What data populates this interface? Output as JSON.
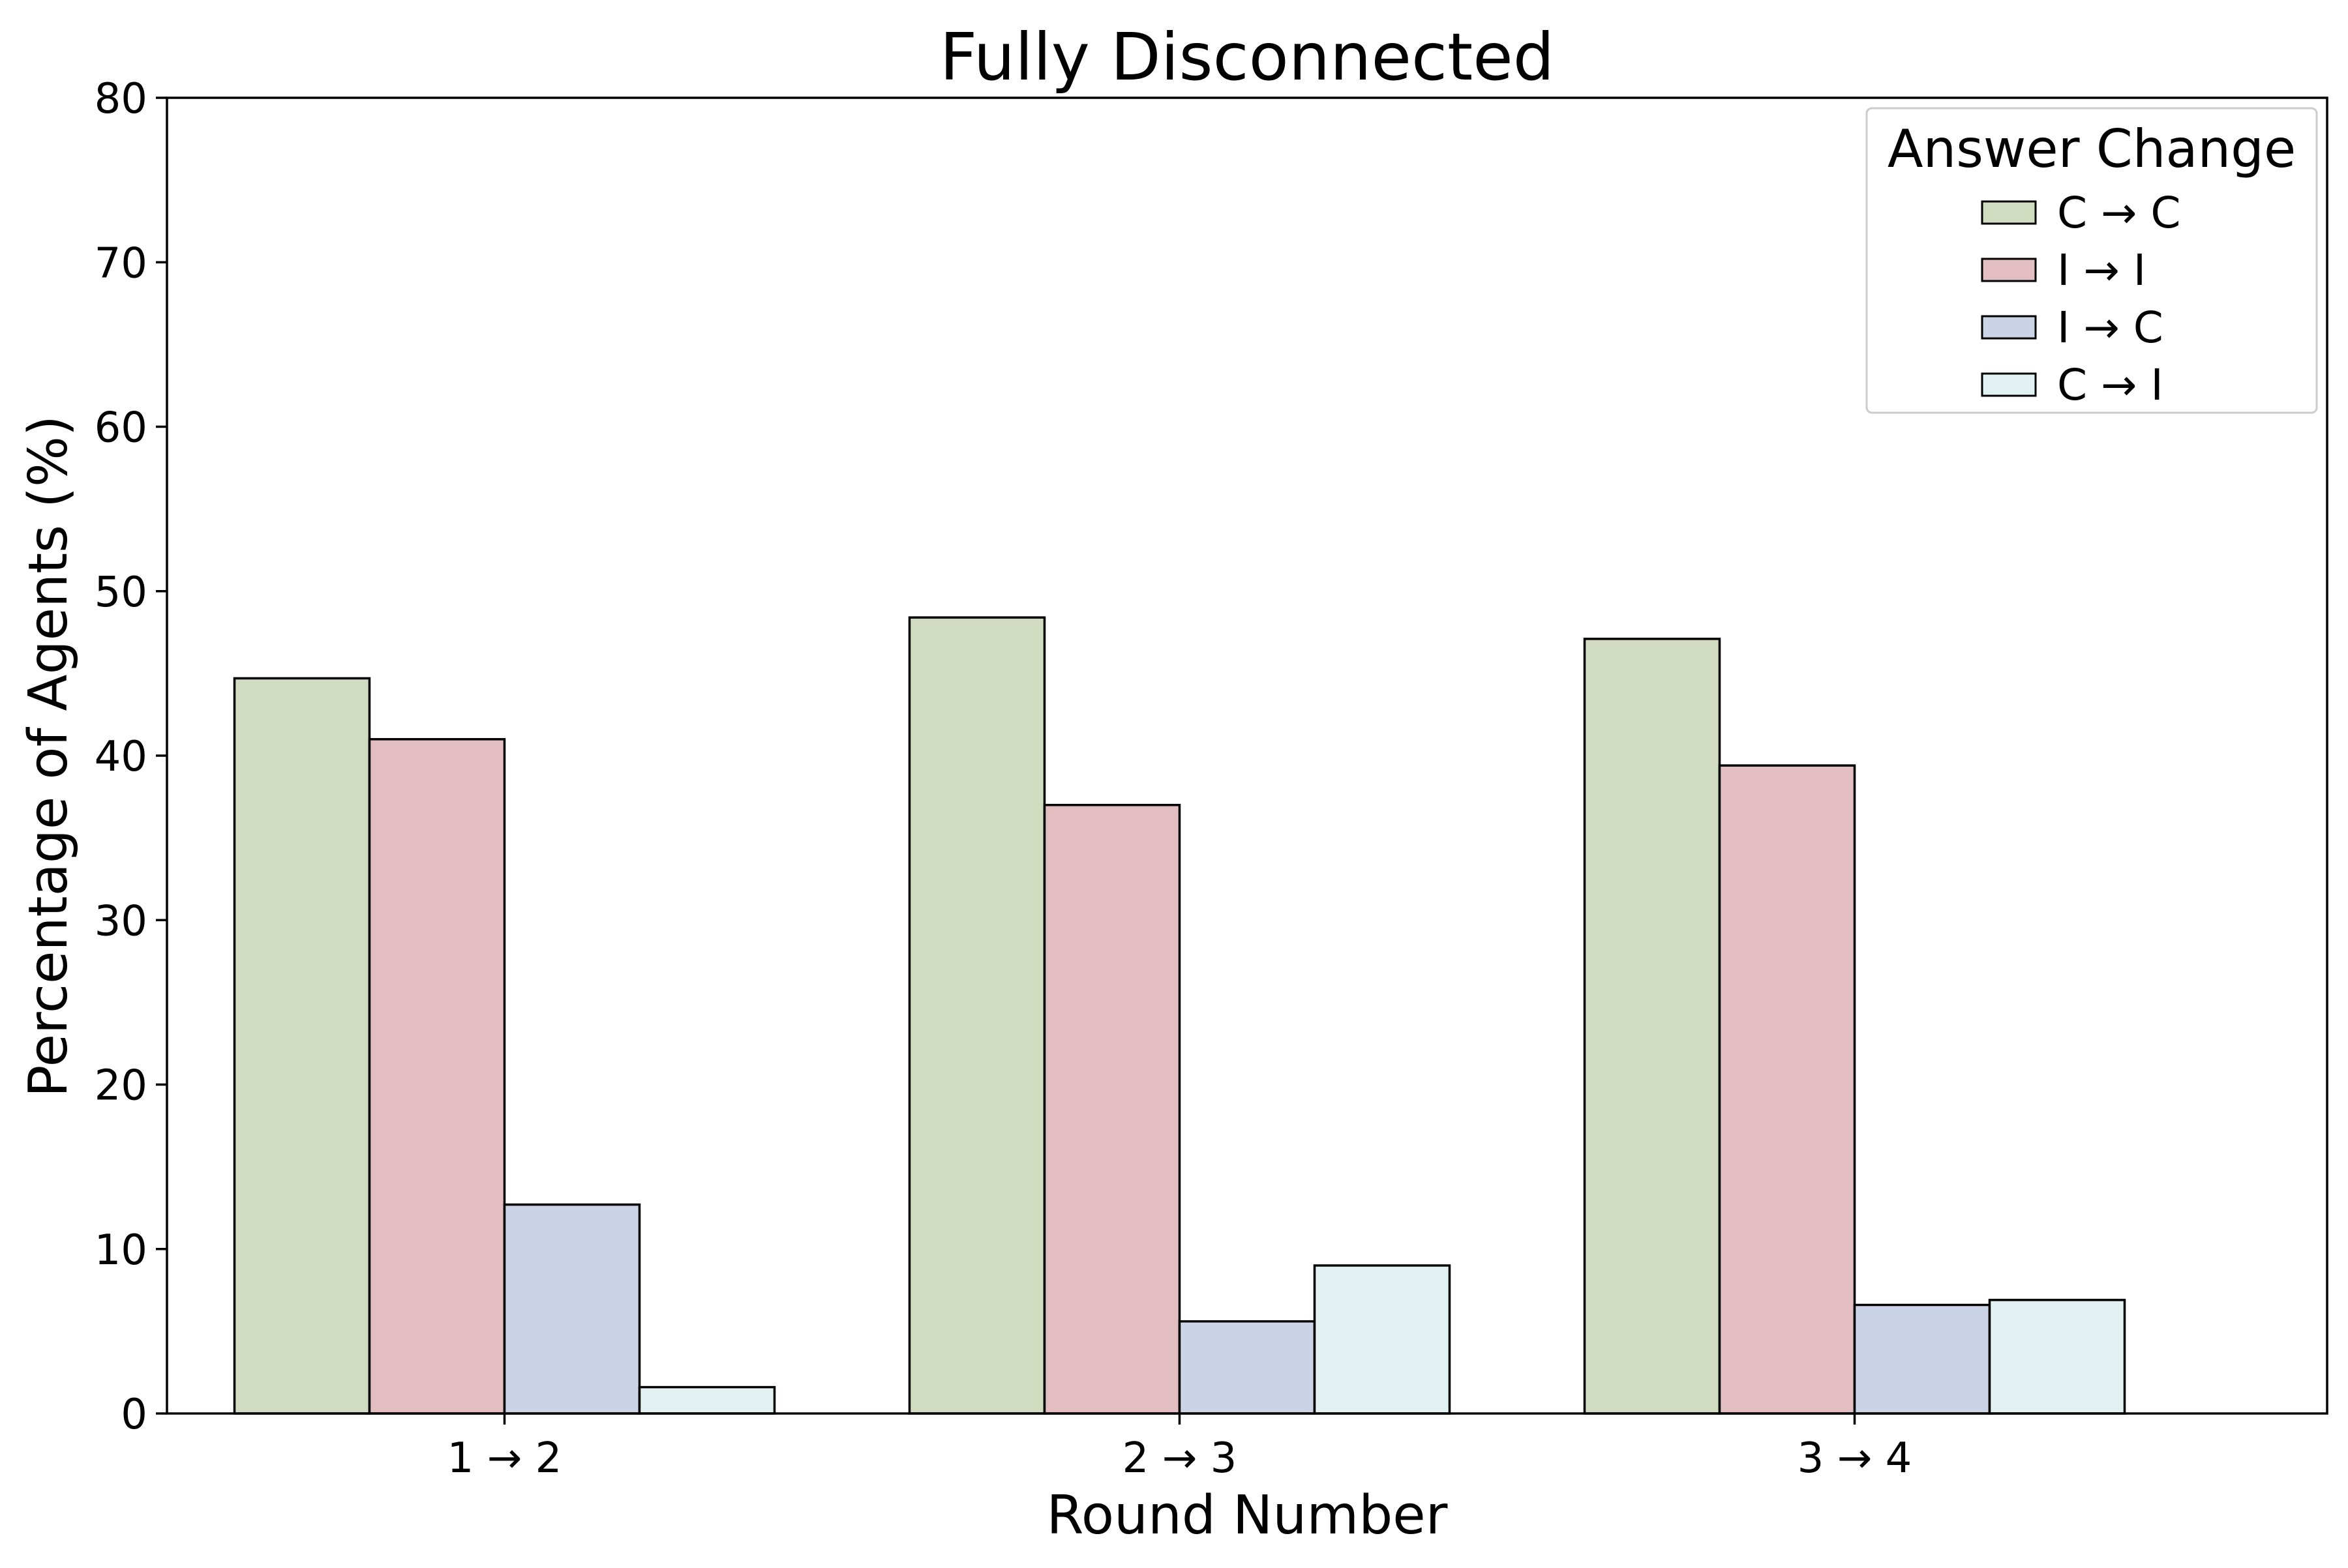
{
  "chart_data": {
    "type": "bar",
    "title": "Fully Disconnected",
    "xlabel": "Round Number",
    "ylabel": "Percentage of Agents (%)",
    "ylim": [
      0,
      80
    ],
    "yticks": [
      0,
      10,
      20,
      30,
      40,
      50,
      60,
      70,
      80
    ],
    "categories": [
      "1 → 2",
      "2 → 3",
      "3 → 4"
    ],
    "series": [
      {
        "name": "C → C",
        "color": "#d0dbc0",
        "values": [
          44.7,
          48.4,
          47.1
        ]
      },
      {
        "name": "I → I",
        "color": "#e2bec2",
        "values": [
          41.0,
          37.0,
          39.4
        ]
      },
      {
        "name": "I → C",
        "color": "#cad4e6",
        "values": [
          12.7,
          5.6,
          6.6
        ]
      },
      {
        "name": "C → I",
        "color": "#e2f2f2",
        "values": [
          1.6,
          9.0,
          6.9
        ]
      }
    ],
    "legend": {
      "title": "Answer Change",
      "position": "top-right"
    },
    "grid": false
  }
}
